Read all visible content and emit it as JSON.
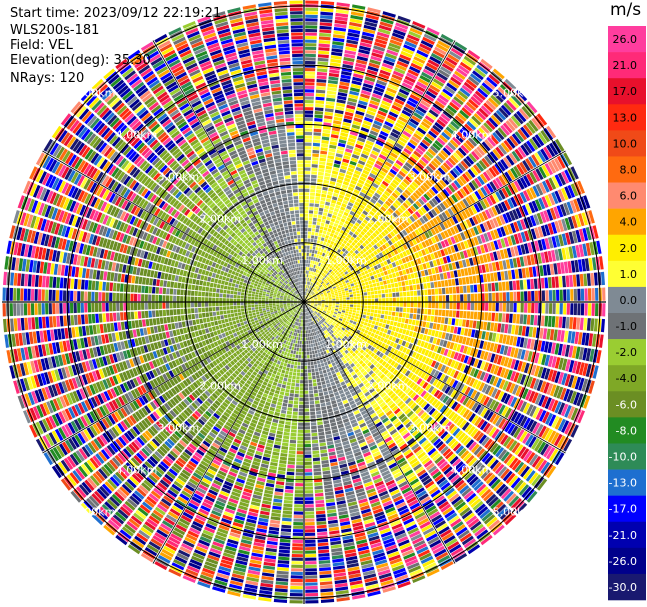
{
  "header": {
    "start_time": "Start time: 2023/09/12 22:19:21",
    "instrument": "WLS200s-181",
    "field": "Field: VEL",
    "elevation": "Elevation(deg): 35.30",
    "nrays": "NRays: 120"
  },
  "chart_data": {
    "type": "heatmap",
    "projection": "polar-ppi",
    "field": "VEL",
    "units": "m/s",
    "nrays": 120,
    "elevation_deg": 35.3,
    "range_rings_km": [
      1.0,
      2.0,
      3.0,
      4.0,
      5.0
    ],
    "ring_labels": [
      "1.00km",
      "2.00km",
      "3.00km",
      "4.00km",
      "5.00km"
    ],
    "radial_lines_deg": [
      0,
      30,
      60,
      90,
      120,
      150,
      180,
      210,
      240,
      270,
      300,
      330
    ],
    "max_range_km": 5.1,
    "colorbar": {
      "title": "m/s",
      "ticks": [
        "26.0",
        "21.0",
        "17.0",
        "13.0",
        "10.0",
        "8.0",
        "6.0",
        "4.0",
        "2.0",
        "1.0",
        "0.0",
        "-1.0",
        "-2.0",
        "-4.0",
        "-6.0",
        "-8.0",
        "-10.0",
        "-13.0",
        "-17.0",
        "-21.0",
        "-26.0",
        "-30.0"
      ],
      "bins": [
        {
          "min": 26,
          "max": 30,
          "color": "#ff3d9e"
        },
        {
          "min": 21,
          "max": 26,
          "color": "#ff2a78"
        },
        {
          "min": 17,
          "max": 21,
          "color": "#e8102c"
        },
        {
          "min": 13,
          "max": 17,
          "color": "#ff2a10"
        },
        {
          "min": 10,
          "max": 13,
          "color": "#f04a18"
        },
        {
          "min": 8,
          "max": 10,
          "color": "#ff6a10"
        },
        {
          "min": 6,
          "max": 8,
          "color": "#ff8a70"
        },
        {
          "min": 4,
          "max": 6,
          "color": "#ffa500"
        },
        {
          "min": 2,
          "max": 4,
          "color": "#ffee00"
        },
        {
          "min": 1,
          "max": 2,
          "color": "#ffff33"
        },
        {
          "min": 0,
          "max": 1,
          "color": "#7f8a94"
        },
        {
          "min": -1,
          "max": 0,
          "color": "#6e7276"
        },
        {
          "min": -2,
          "max": -1,
          "color": "#9acd32"
        },
        {
          "min": -4,
          "max": -2,
          "color": "#7fa826"
        },
        {
          "min": -6,
          "max": -4,
          "color": "#6b8e23"
        },
        {
          "min": -8,
          "max": -6,
          "color": "#228b22"
        },
        {
          "min": -10,
          "max": -8,
          "color": "#2e8b57"
        },
        {
          "min": -13,
          "max": -10,
          "color": "#1e6fd0"
        },
        {
          "min": -17,
          "max": -13,
          "color": "#0000ff"
        },
        {
          "min": -21,
          "max": -17,
          "color": "#0000b0"
        },
        {
          "min": -26,
          "max": -21,
          "color": "#00008b"
        },
        {
          "min": -30,
          "max": -26,
          "color": "#191970"
        }
      ]
    },
    "pattern": {
      "positive_center_deg": 75,
      "near_noise_free_km": 2.3,
      "far_noise_km": 3.6
    }
  }
}
